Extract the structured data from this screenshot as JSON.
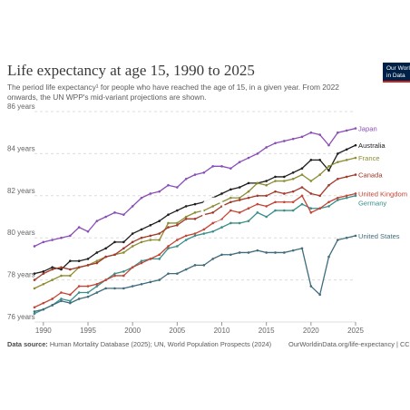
{
  "header": {
    "title": "Life expectancy at age 15, 1990 to 2025",
    "subtitle": "The period life expectancy¹ for people who have reached the age of 15, in a given year. From 2022 onwards, the UN WPP's mid-variant projections are shown.",
    "logo_text": "Our World in Data"
  },
  "footer": {
    "source_label": "Data source:",
    "source_text": "Human Mortality Database (2025); UN, World Population Prospects (2024)",
    "url": "OurWorldinData.org/life-expectancy | CC BY"
  },
  "colors": {
    "Japan": "#8a4eb8",
    "Australia": "#1e1e1e",
    "France": "#8d8d33",
    "Canada": "#a23a2a",
    "Germany": "#3a8f8a",
    "United Kingdom": "#c44536",
    "United States": "#3f6d7d"
  },
  "chart_data": {
    "type": "line",
    "title": "Life expectancy at age 15, 1990 to 2025",
    "xlim": [
      1989,
      2025
    ],
    "ylim": [
      76,
      86
    ],
    "x_ticks": [
      1990,
      1995,
      2000,
      2005,
      2010,
      2015,
      2020,
      2025
    ],
    "y_ticks": [
      76,
      78,
      80,
      82,
      84,
      86
    ],
    "y_tick_labels": [
      "76 years",
      "78 years",
      "80 years",
      "82 years",
      "84 years",
      "86 years"
    ],
    "grid": "horizontal dashed",
    "legend": "right-end labels",
    "x": [
      1989,
      1990,
      1991,
      1992,
      1993,
      1994,
      1995,
      1996,
      1997,
      1998,
      1999,
      2000,
      2001,
      2002,
      2003,
      2004,
      2005,
      2006,
      2007,
      2008,
      2009,
      2010,
      2011,
      2012,
      2013,
      2014,
      2015,
      2016,
      2017,
      2018,
      2019,
      2020,
      2021,
      2022,
      2023,
      2024,
      2025
    ],
    "series": [
      {
        "name": "Japan",
        "values": [
          79.6,
          79.8,
          79.9,
          80.0,
          80.1,
          80.5,
          80.3,
          80.8,
          81.0,
          81.2,
          81.1,
          81.5,
          81.9,
          82.1,
          82.2,
          82.5,
          82.4,
          82.8,
          83.0,
          83.1,
          83.4,
          83.4,
          83.3,
          83.6,
          83.8,
          84.0,
          84.3,
          84.5,
          84.6,
          84.7,
          84.8,
          85.0,
          84.9,
          84.4,
          85.0,
          85.1,
          85.2
        ]
      },
      {
        "name": "Australia",
        "values": [
          78.3,
          78.4,
          78.6,
          78.5,
          78.9,
          78.9,
          79.0,
          79.3,
          79.5,
          79.8,
          79.8,
          80.2,
          80.4,
          80.6,
          80.8,
          81.1,
          81.3,
          81.5,
          81.6,
          81.7,
          81.9,
          82.1,
          82.3,
          82.4,
          82.6,
          82.6,
          82.7,
          82.9,
          82.9,
          83.1,
          83.3,
          83.7,
          83.7,
          83.2,
          84.0,
          84.2,
          84.4
        ]
      },
      {
        "name": "France",
        "values": [
          77.6,
          77.8,
          78.0,
          78.2,
          78.2,
          78.6,
          78.7,
          78.9,
          79.1,
          79.2,
          79.3,
          79.6,
          79.8,
          79.9,
          79.9,
          80.7,
          80.7,
          81.0,
          81.2,
          81.3,
          81.5,
          81.7,
          81.9,
          81.9,
          82.2,
          82.6,
          82.5,
          82.7,
          82.7,
          82.8,
          83.0,
          82.7,
          83.0,
          83.4,
          83.6,
          83.7,
          83.8
        ]
      },
      {
        "name": "Canada",
        "values": [
          78.0,
          78.3,
          78.5,
          78.6,
          78.5,
          78.6,
          78.7,
          78.8,
          79.1,
          79.2,
          79.5,
          79.8,
          80.0,
          80.1,
          80.2,
          80.5,
          80.6,
          80.9,
          80.9,
          81.1,
          81.2,
          81.5,
          81.7,
          81.8,
          81.9,
          82.0,
          82.0,
          82.2,
          82.1,
          82.2,
          82.4,
          82.1,
          82.0,
          82.5,
          82.8,
          82.9,
          83.0
        ]
      },
      {
        "name": "Germany",
        "values": [
          76.4,
          76.6,
          76.8,
          77.1,
          77.0,
          77.4,
          77.4,
          77.7,
          78.0,
          78.3,
          78.4,
          78.6,
          78.9,
          79.0,
          79.0,
          79.5,
          79.6,
          79.9,
          80.1,
          80.2,
          80.3,
          80.5,
          80.7,
          80.7,
          80.8,
          81.2,
          81.0,
          81.3,
          81.3,
          81.3,
          81.6,
          81.4,
          81.4,
          81.5,
          81.8,
          81.9,
          82.0
        ]
      },
      {
        "name": "United Kingdom",
        "values": [
          76.7,
          76.9,
          77.1,
          77.4,
          77.3,
          77.7,
          77.7,
          77.8,
          78.0,
          78.2,
          78.2,
          78.6,
          78.8,
          79.0,
          79.2,
          79.6,
          79.9,
          80.1,
          80.2,
          80.4,
          80.7,
          80.9,
          81.3,
          81.2,
          81.4,
          81.6,
          81.5,
          81.7,
          81.7,
          81.7,
          82.0,
          81.2,
          81.4,
          81.7,
          81.9,
          82.0,
          82.1
        ]
      },
      {
        "name": "United States",
        "values": [
          76.5,
          76.6,
          76.8,
          77.0,
          76.9,
          77.1,
          77.2,
          77.4,
          77.6,
          77.6,
          77.6,
          77.7,
          77.8,
          77.9,
          78.0,
          78.3,
          78.3,
          78.5,
          78.7,
          78.7,
          79.0,
          79.2,
          79.2,
          79.3,
          79.3,
          79.4,
          79.3,
          79.3,
          79.3,
          79.4,
          79.5,
          77.7,
          77.3,
          79.1,
          79.9,
          80.0,
          80.1
        ]
      }
    ]
  }
}
